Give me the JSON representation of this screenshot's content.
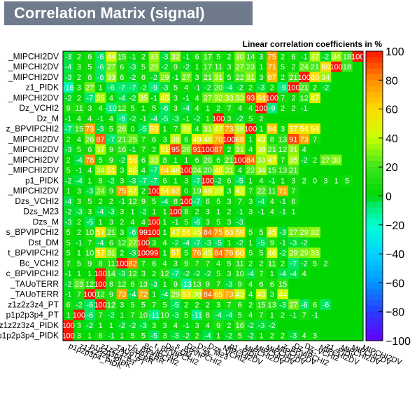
{
  "title": "Correlation Matrix (signal)",
  "subtitle": "Linear correlation coefficients in %",
  "chart_data": {
    "type": "heatmap",
    "title": "Correlation Matrix (signal)",
    "subtitle": "Linear correlation coefficients in %",
    "zlim": [
      -100,
      100
    ],
    "colorbar_ticks": [
      "100",
      "80",
      "60",
      "40",
      "20",
      "0",
      "−20",
      "−40",
      "−60",
      "−80",
      "−100"
    ],
    "row_labels_top_to_bottom": [
      "_MIPCHI2DV",
      "_MIPCHI2DV",
      "_MIPCHI2DV",
      "z1_PIDK",
      "_MIPCHI2DV",
      "Dz_VCHI2",
      "Dz_M",
      "z_BPVIPCHI2",
      "_MIPCHI2DV",
      "_MIPCHI2DV",
      "_MIPCHI2DV",
      "_MIPCHI2DV",
      "p1_PIDK",
      "_MIPCHI2DV",
      "Dzs_VCHI2",
      "Dzs_M23",
      "Dzs_M",
      "s_BPVIPCHI2",
      "Dst_DM",
      "t_BPVIPCHI2",
      "Bc_VCHI2",
      "c_BPVIPCHI2",
      "_TAUoTERR",
      "_TAUoTERR",
      "z1z2z3z4_PT",
      "p1p2p3p4_PT",
      "z1z2z3z4_PIDK",
      "p1p2p3p4_PIDK"
    ],
    "matrix_top_to_bottom": [
      [
        -3,
        2,
        6,
        -6,
        44,
        15,
        -1,
        2,
        33,
        -3,
        32,
        -1,
        6,
        17,
        5,
        2,
        30,
        14,
        3,
        75,
        2,
        6,
        -1,
        37,
        -2,
        34,
        18,
        100
      ],
      [
        -4,
        3,
        5,
        -6,
        27,
        6,
        -3,
        5,
        29,
        -2,
        9,
        -2,
        1,
        17,
        11,
        3,
        27,
        23,
        1,
        71,
        5,
        2,
        24,
        21,
        60,
        100,
        18
      ],
      [
        -3,
        2,
        6,
        -6,
        33,
        6,
        -2,
        6,
        -2,
        29,
        -1,
        27,
        3,
        21,
        31,
        5,
        22,
        31,
        3,
        67,
        2,
        21,
        100,
        60,
        34
      ],
      [
        -16,
        3,
        27,
        1,
        -6,
        -7,
        -7,
        -2,
        -9,
        -3,
        5,
        4,
        -1,
        -2,
        20,
        -4,
        -2,
        2,
        -3,
        2,
        -9,
        100,
        21,
        2,
        -2
      ],
      [
        -2,
        2,
        -7,
        35,
        4,
        -4,
        -2,
        35,
        -1,
        45,
        3,
        -1,
        4,
        27,
        32,
        33,
        33,
        93,
        64,
        100,
        7,
        2,
        12,
        47
      ],
      [
        9,
        11,
        3,
        4,
        -10,
        12,
        5,
        1,
        5,
        -6,
        3,
        -4,
        4,
        1,
        2,
        7,
        4,
        4,
        100,
        -9,
        2,
        2,
        -1
      ],
      [
        -1,
        4,
        4,
        -1,
        4,
        -9,
        -2,
        -1,
        -4,
        -5,
        -3,
        -1,
        -2,
        1,
        100,
        3,
        -2,
        5,
        2
      ],
      [
        -7,
        15,
        73,
        -3,
        5,
        26,
        0,
        -5,
        59,
        1,
        7,
        39,
        4,
        31,
        47,
        73,
        38,
        100,
        1,
        64,
        3,
        57,
        54,
        54
      ],
      [
        2,
        4,
        26,
        87,
        -7,
        21,
        25,
        7,
        6,
        3,
        38,
        6,
        49,
        48,
        70,
        100,
        68,
        1,
        43,
        8,
        13,
        91,
        73,
        7
      ],
      [
        -3,
        5,
        6,
        37,
        9,
        16,
        -1,
        7,
        2,
        51,
        95,
        26,
        91,
        100,
        87,
        2,
        31,
        4,
        39,
        21,
        12,
        31,
        4
      ],
      [
        2,
        -4,
        78,
        5,
        9,
        -2,
        58,
        6,
        33,
        8,
        1,
        1,
        6,
        20,
        6,
        21,
        100,
        84,
        33,
        47,
        7,
        35,
        -2,
        2,
        27,
        30
      ],
      [
        5,
        -1,
        4,
        34,
        51,
        3,
        46,
        4,
        -7,
        64,
        46,
        100,
        24,
        20,
        46,
        31,
        4,
        22,
        34,
        15,
        13,
        21
      ],
      [
        -2,
        -4,
        1,
        8,
        -2,
        3,
        -3,
        -7,
        -7,
        6,
        1,
        3,
        -7,
        100,
        -2,
        6,
        -5,
        1,
        4,
        -1,
        1,
        3,
        2,
        0,
        3,
        1,
        5
      ],
      [
        1,
        3,
        -3,
        24,
        9,
        75,
        47,
        2,
        100,
        54,
        62,
        0,
        19,
        48,
        39,
        3,
        42,
        7,
        22,
        11,
        71,
        7
      ],
      [
        -4,
        3,
        5,
        2,
        2,
        -1,
        12,
        9,
        5,
        -4,
        8,
        100,
        -7,
        6,
        5,
        3,
        7,
        3,
        -4,
        4,
        -1,
        6
      ],
      [
        -2,
        -3,
        3,
        -4,
        -3,
        3,
        1,
        -2,
        1,
        1,
        100,
        8,
        2,
        3,
        1,
        2,
        -1,
        3,
        -1,
        4,
        -1,
        1
      ],
      [
        -3,
        2,
        -5,
        1,
        3,
        2,
        4,
        4,
        100,
        1,
        -1,
        5,
        -6,
        3,
        5,
        3,
        -3
      ],
      [
        5,
        2,
        10,
        57,
        21,
        3,
        -6,
        99,
        100,
        1,
        47,
        56,
        45,
        84,
        75,
        63,
        59,
        5,
        5,
        45,
        -3,
        27,
        29,
        32
      ],
      [
        5,
        -1,
        7,
        -4,
        6,
        12,
        27,
        100,
        3,
        4,
        -2,
        -4,
        -7,
        -3,
        -5,
        1,
        -2,
        1,
        -5,
        9,
        -1,
        -3,
        -2
      ],
      [
        5,
        1,
        10,
        57,
        31,
        2,
        -3,
        100,
        99,
        1,
        57,
        5,
        76,
        45,
        84,
        76,
        60,
        5,
        5,
        46,
        -2,
        29,
        29,
        33
      ],
      [
        7,
        5,
        9,
        8,
        11,
        100,
        82,
        7,
        6,
        4,
        3,
        9,
        7,
        7,
        4,
        5,
        11,
        2,
        2,
        11,
        2,
        -7,
        -2,
        5,
        2
      ],
      [
        -1,
        1,
        1,
        100,
        14,
        -3,
        12,
        3,
        2,
        12,
        -7,
        -2,
        -2,
        -2,
        5,
        3,
        10,
        -4,
        7,
        1,
        -4,
        -4,
        4
      ],
      [
        -2,
        23,
        12,
        100,
        8,
        12,
        6,
        13,
        -3,
        1,
        9,
        -13,
        13,
        9,
        7,
        -3,
        9,
        4,
        6,
        6,
        15
      ],
      [
        -1,
        7,
        100,
        12,
        9,
        73,
        -4,
        72,
        1,
        -4,
        29,
        53,
        38,
        84,
        65,
        73,
        43,
        4,
        43,
        3,
        44
      ],
      [
        6,
        -2,
        -6,
        100,
        12,
        3,
        5,
        5,
        7,
        5,
        -5,
        2,
        2,
        2,
        3,
        7,
        6,
        2,
        15,
        13,
        -3,
        27,
        -6,
        6,
        -6
      ],
      [
        1,
        100,
        -6,
        7,
        -2,
        1,
        7,
        10,
        -11,
        10,
        -3,
        5,
        -11,
        8,
        -4,
        -4,
        5,
        4,
        7,
        1,
        2,
        -1,
        7,
        -1
      ],
      [
        100,
        3,
        -2,
        1,
        1,
        -2,
        -2,
        -3,
        3,
        3,
        4,
        -1,
        3,
        4,
        9,
        2,
        16,
        -2,
        -3,
        -2
      ],
      [
        100,
        3,
        1,
        6,
        -1,
        1,
        5,
        5,
        -5,
        3,
        -3,
        -2,
        2,
        -4,
        1,
        -2,
        5,
        -2,
        1,
        2,
        2,
        -3,
        4,
        3
      ]
    ]
  }
}
